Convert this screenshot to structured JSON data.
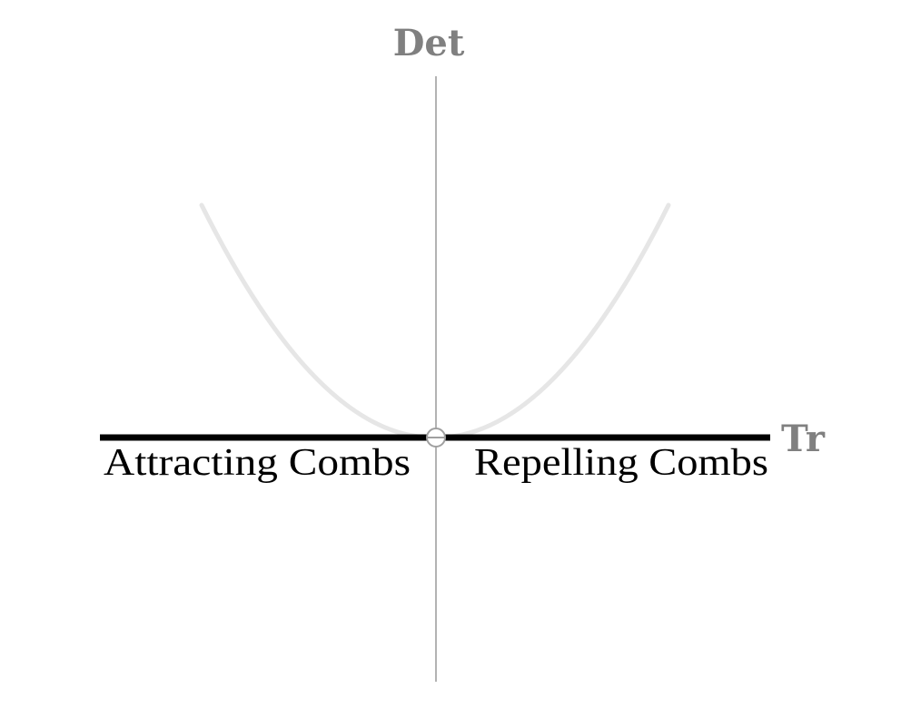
{
  "diagram": {
    "vertical_axis_label": "Det",
    "horizontal_axis_label": "Tr",
    "left_region_label": "Attracting Combs",
    "right_region_label": "Repelling Combs",
    "colors": {
      "axis": "#b3b3b3",
      "axis_label": "#808080",
      "parabola": "#e6e6e6",
      "highlight_line": "#000000",
      "text": "#000000",
      "origin_marker": "#a0a0a0"
    }
  }
}
